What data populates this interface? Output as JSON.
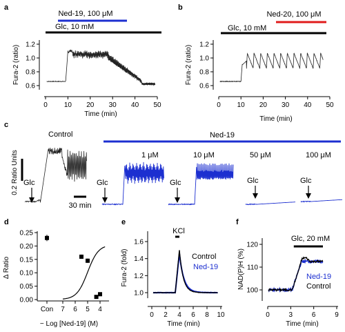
{
  "colors": {
    "blue": "#1c2fd0",
    "red": "#e01b1b",
    "black": "#000000"
  },
  "panel_labels": [
    "a",
    "b",
    "c",
    "d",
    "e",
    "f"
  ],
  "chart_data": [
    {
      "panel": "a",
      "type": "line",
      "xlabel": "Time (min)",
      "ylabel": "Fura-2 (ratio)",
      "xlim": [
        0,
        50
      ],
      "ylim": [
        0.55,
        1.25
      ],
      "xticks": [
        0,
        10,
        20,
        30,
        40,
        50
      ],
      "yticks": [
        0.6,
        0.8,
        1.0,
        1.2
      ],
      "bars": [
        {
          "label": "Glc, 10 mM",
          "start": 4,
          "end": 50,
          "color": "#000000"
        },
        {
          "label": "Ned-19, 100 μM",
          "start": 26,
          "end": 44,
          "color": "#1c2fd0"
        }
      ],
      "trace": {
        "baseline": 0.66,
        "onset": 9,
        "plateau": [
          0.95,
          1.15
        ],
        "oscillation_amplitude": 0.1,
        "decline_start": 28,
        "decline_end": 43,
        "final": 0.62
      }
    },
    {
      "panel": "b",
      "type": "line",
      "xlabel": "Time (min)",
      "ylabel": "Fura-2 (ratio)",
      "xlim": [
        0,
        50
      ],
      "ylim": [
        0.55,
        1.25
      ],
      "xticks": [
        0,
        10,
        20,
        30,
        40,
        50
      ],
      "yticks": [
        0.6,
        0.8,
        1.0,
        1.2
      ],
      "bars": [
        {
          "label": "Glc, 10 mM",
          "start": 4,
          "end": 47,
          "color": "#000000"
        },
        {
          "label": "Ned-20, 100 μM",
          "start": 25,
          "end": 47,
          "color": "#e01b1b"
        }
      ],
      "trace": {
        "baseline": 0.66,
        "onset": 10,
        "oscillation_low": 0.85,
        "oscillation_high": 1.07,
        "oscillation_period_min": 3
      }
    },
    {
      "panel": "c",
      "type": "line",
      "scale_bar_y": "0.2 Ratio Units",
      "scale_bar_x": "30 min",
      "bar_label": "Ned-19",
      "stimulus_label": "Glc",
      "traces": [
        {
          "label": "Control",
          "color": "#000000",
          "pattern": "oscillating"
        },
        {
          "label": "1 μM",
          "color": "#1c2fd0",
          "pattern": "oscillating"
        },
        {
          "label": "10 μM",
          "color": "#1c2fd0",
          "pattern": "oscillating"
        },
        {
          "label": "50 μM",
          "color": "#1c2fd0",
          "pattern": "flat"
        },
        {
          "label": "100 μM",
          "color": "#1c2fd0",
          "pattern": "flat"
        }
      ]
    },
    {
      "panel": "d",
      "type": "scatter",
      "xlabel": "− Log [Ned-19] (M)",
      "ylabel": "Δ Ratio",
      "ylim": [
        0,
        0.25
      ],
      "yticks": [
        0.0,
        0.05,
        0.1,
        0.15,
        0.2,
        0.25
      ],
      "xticks": [
        "Con",
        "7",
        "6",
        "5",
        "4",
        "3"
      ],
      "points": [
        {
          "x": "Con",
          "y": 0.23,
          "err": 0.012
        },
        {
          "x": 5.5,
          "y": 0.16,
          "err": 0.008
        },
        {
          "x": 5,
          "y": 0.145,
          "err": 0.008
        },
        {
          "x": 4.3,
          "y": 0.01,
          "err": 0.005
        },
        {
          "x": 4,
          "y": 0.02,
          "err": 0.005
        }
      ],
      "fit": {
        "top": 0.205,
        "bottom": 0.0,
        "log_ic50": 5.0,
        "hill": 1
      }
    },
    {
      "panel": "e",
      "type": "line",
      "xlabel": "Time (min)",
      "ylabel": "Fura-2 (fold)",
      "xlim": [
        0,
        10
      ],
      "ylim": [
        0.9,
        1.65
      ],
      "xticks": [
        0,
        2,
        4,
        6,
        8,
        10
      ],
      "yticks": [
        1.0,
        1.2,
        1.4,
        1.6
      ],
      "bar": {
        "label": "KCl",
        "start": 3.4,
        "end": 4.0
      },
      "series": [
        {
          "name": "Control",
          "color": "#000000",
          "peak": 1.5,
          "peak_time": 4.0
        },
        {
          "name": "Ned-19",
          "color": "#1c2fd0",
          "peak": 1.46,
          "peak_time": 4.0
        }
      ]
    },
    {
      "panel": "f",
      "type": "line",
      "xlabel": "Time (min)",
      "ylabel": "NAD(P)H (%)",
      "xlim": [
        0,
        9
      ],
      "ylim": [
        98,
        121
      ],
      "xticks": [
        0,
        3,
        6,
        9
      ],
      "yticks": [
        100,
        110,
        120
      ],
      "bar": {
        "label": "Glc, 20 mM",
        "start": 3.4,
        "end": 7.2
      },
      "series": [
        {
          "name": "Ned-19",
          "color": "#1c2fd0",
          "plateau": 112.5
        },
        {
          "name": "Control",
          "color": "#000000",
          "plateau": 112.5
        }
      ]
    }
  ]
}
